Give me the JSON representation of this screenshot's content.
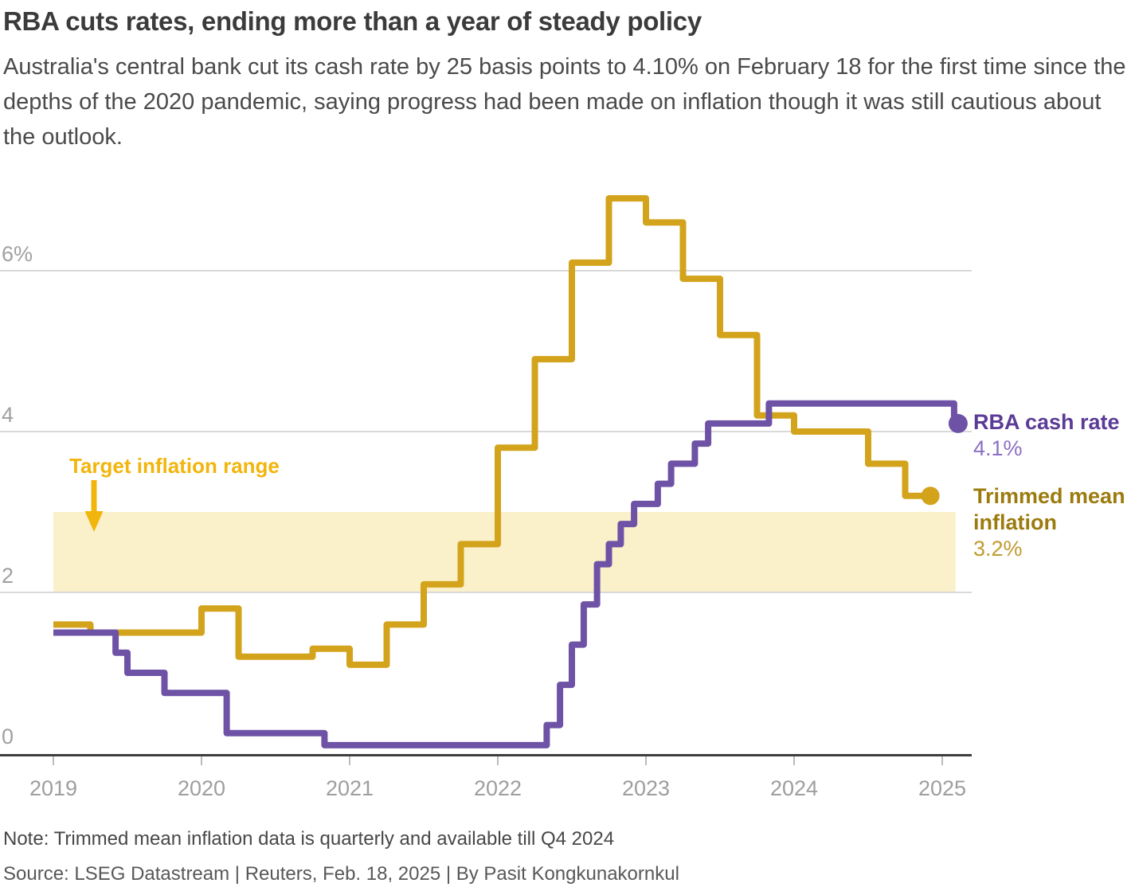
{
  "header": {
    "title": "RBA cuts rates, ending more than a year of steady policy",
    "subtitle": "Australia's central bank cut its cash rate by 25 basis points to 4.10% on February 18 for the first time since the depths of the 2020 pandemic, saying progress had been made on inflation though it was still cautious about the outlook."
  },
  "footer": {
    "note": "Note: Trimmed mean inflation data is quarterly and available till Q4 2024",
    "source": "Source: LSEG Datastream | Reuters, Feb. 18, 2025 | By Pasit Kongkunakornkul"
  },
  "chart_data": {
    "type": "line",
    "style": "step",
    "title": "RBA cuts rates, ending more than a year of steady policy",
    "grid": true,
    "legend_position": "right",
    "x_axis": {
      "ticks": [
        {
          "label": "2019",
          "value": 2019
        },
        {
          "label": "2020",
          "value": 2020
        },
        {
          "label": "2021",
          "value": 2021
        },
        {
          "label": "2022",
          "value": 2022
        },
        {
          "label": "2023",
          "value": 2023
        },
        {
          "label": "2024",
          "value": 2024
        },
        {
          "label": "2025",
          "value": 2025
        }
      ],
      "range": [
        2019,
        2025.2
      ]
    },
    "y_axis": {
      "unit": "%",
      "ticks": [
        {
          "label": "6%",
          "value": 6
        },
        {
          "label": "4",
          "value": 4
        },
        {
          "label": "2",
          "value": 2
        },
        {
          "label": "0",
          "value": 0
        }
      ],
      "gridline_values": [
        6,
        4,
        2
      ],
      "range": [
        0,
        7.3
      ]
    },
    "target_band": {
      "label": "Target inflation range",
      "from_percent": 2,
      "to_percent": 3,
      "band_color": "#faf0ca",
      "label_color": "#f2b50d",
      "x_from": 2019.0,
      "x_to": 2025.09
    },
    "series": [
      {
        "name": "RBA cash rate",
        "label": "RBA cash rate",
        "latest_label": "4.1%",
        "latest_value": 4.1,
        "color": "#6e52a5",
        "label_color": "#5b3b96",
        "value_color": "#8c6fc4",
        "unit": "% policy rate",
        "points": [
          {
            "t": 2019.0,
            "v": 1.5
          },
          {
            "t": 2019.42,
            "v": 1.25
          },
          {
            "t": 2019.5,
            "v": 1.0
          },
          {
            "t": 2019.75,
            "v": 0.75
          },
          {
            "t": 2020.17,
            "v": 0.25
          },
          {
            "t": 2020.83,
            "v": 0.1
          },
          {
            "t": 2022.33,
            "v": 0.35
          },
          {
            "t": 2022.42,
            "v": 0.85
          },
          {
            "t": 2022.5,
            "v": 1.35
          },
          {
            "t": 2022.58,
            "v": 1.85
          },
          {
            "t": 2022.67,
            "v": 2.35
          },
          {
            "t": 2022.75,
            "v": 2.6
          },
          {
            "t": 2022.83,
            "v": 2.85
          },
          {
            "t": 2022.92,
            "v": 3.1
          },
          {
            "t": 2023.08,
            "v": 3.35
          },
          {
            "t": 2023.17,
            "v": 3.6
          },
          {
            "t": 2023.33,
            "v": 3.85
          },
          {
            "t": 2023.42,
            "v": 4.1
          },
          {
            "t": 2023.83,
            "v": 4.35
          },
          {
            "t": 2025.08,
            "v": 4.1
          }
        ]
      },
      {
        "name": "Trimmed mean inflation",
        "label": "Trimmed mean inflation",
        "label_lines": [
          "Trimmed mean",
          "inflation"
        ],
        "latest_label": "3.2%",
        "latest_value": 3.2,
        "color": "#d3a31b",
        "label_color": "#9c7b0e",
        "value_color": "#c19b2e",
        "unit": "% year-on-year, quarterly",
        "start_quarter": "2019-Q1",
        "end_quarter": "2024-Q4",
        "start_t": 2019.0,
        "interval_t": 0.25,
        "end_t": 2024.92,
        "values": [
          1.6,
          1.5,
          1.5,
          1.5,
          1.8,
          1.2,
          1.2,
          1.3,
          1.1,
          1.6,
          2.1,
          2.6,
          3.8,
          4.9,
          6.1,
          6.9,
          6.6,
          5.9,
          5.2,
          4.2,
          4.0,
          4.0,
          3.6,
          3.2
        ]
      }
    ]
  }
}
